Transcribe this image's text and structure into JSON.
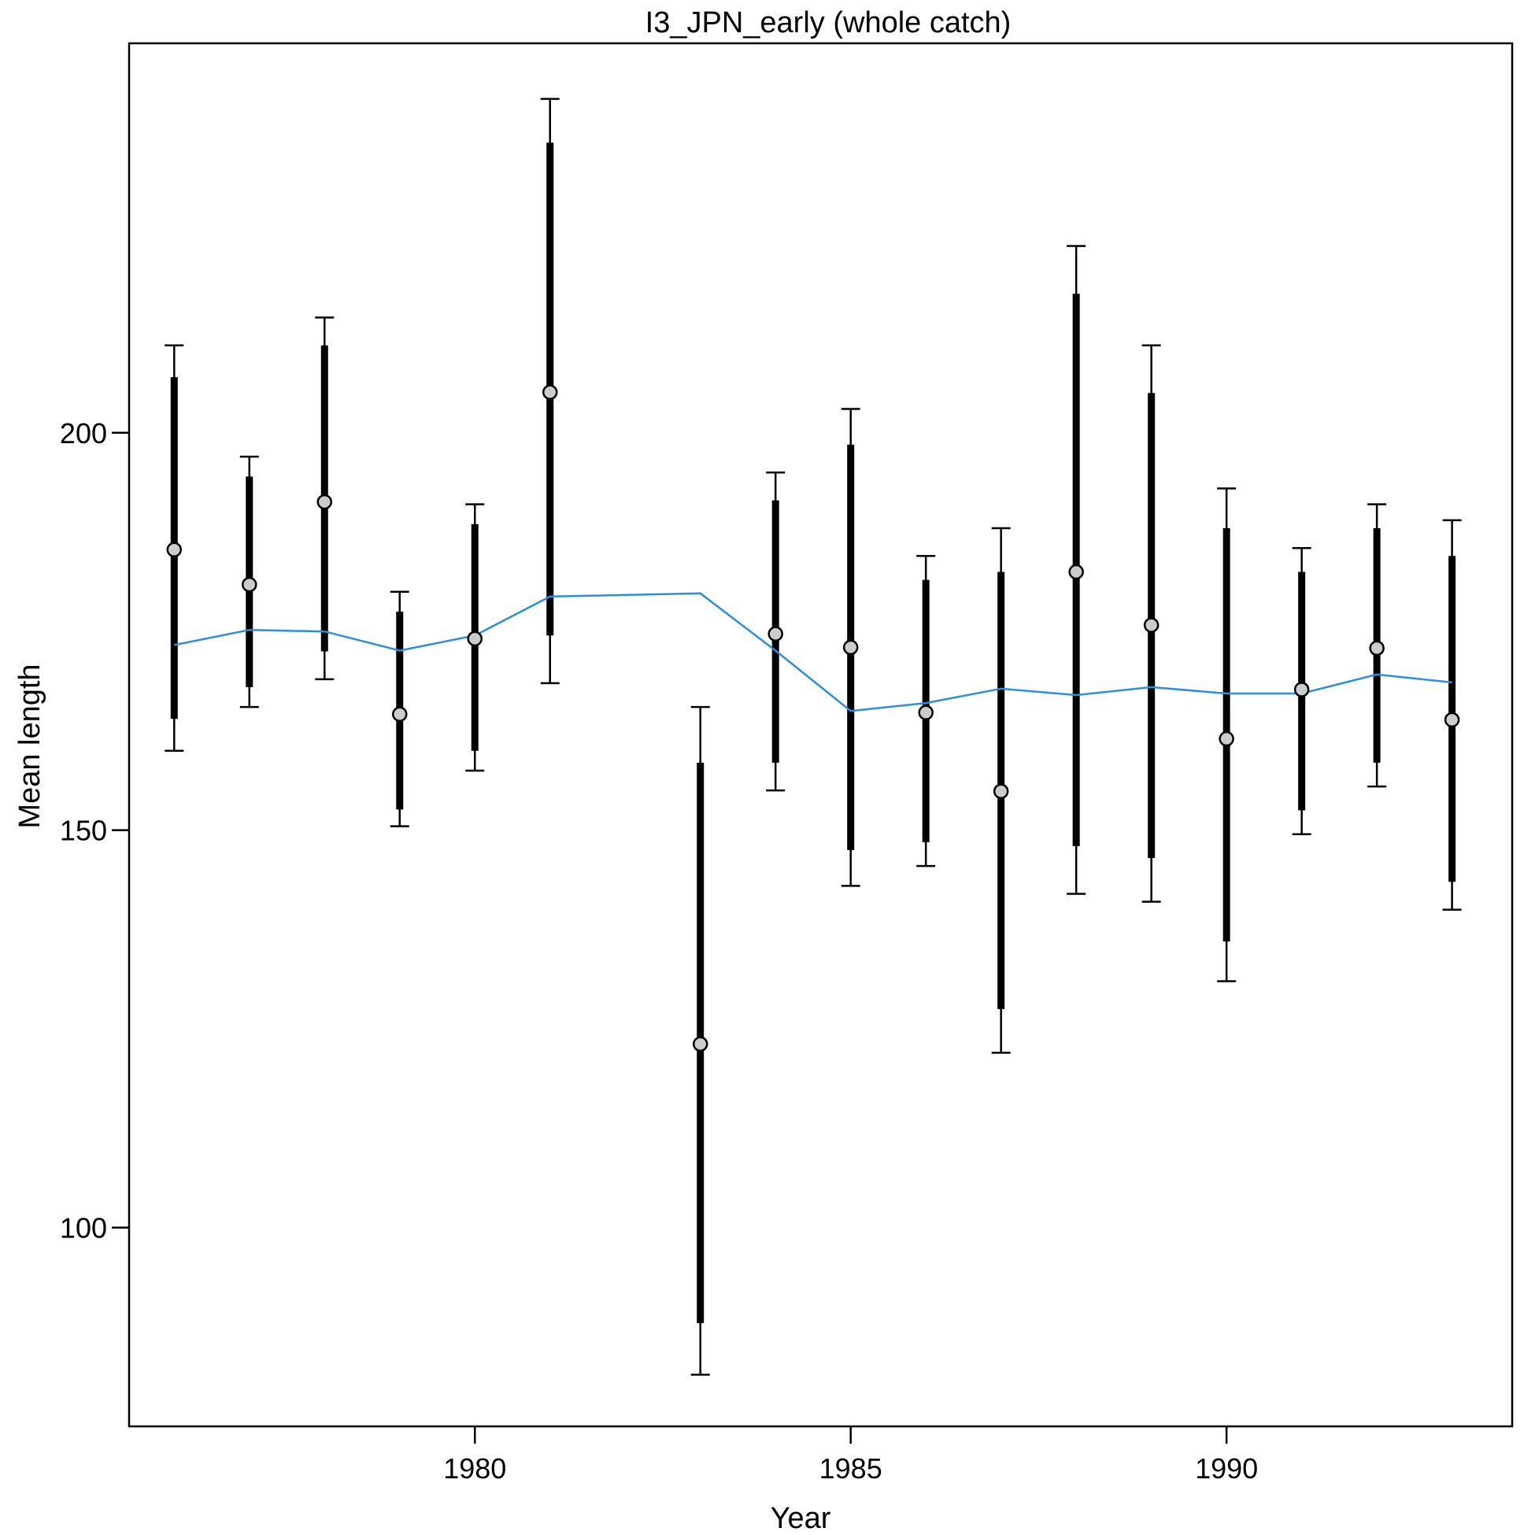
{
  "chart_data": {
    "type": "scatter",
    "title": "I3_JPN_early (whole catch)",
    "xlabel": "Year",
    "ylabel": "Mean length",
    "xlim": [
      1975.4,
      1993.8
    ],
    "ylim": [
      75,
      249
    ],
    "x_ticks": [
      1980,
      1985,
      1990
    ],
    "y_ticks": [
      100,
      150,
      200
    ],
    "grid": false,
    "legend": "none",
    "colors": {
      "observed_fill": "#cccccc",
      "observed_stroke": "#000000",
      "error_bar": "#000000",
      "expected_line": "#2b8ee0"
    },
    "series": [
      {
        "type": "points_with_error_bars",
        "x": [
          1976,
          1977,
          1978,
          1979,
          1980,
          1981,
          1983,
          1984,
          1985,
          1986,
          1987,
          1988,
          1989,
          1990,
          1991,
          1992,
          1993
        ],
        "y": [
          185.3,
          180.9,
          191.3,
          164.6,
          174.1,
          205.1,
          123.1,
          174.7,
          173.0,
          164.8,
          154.9,
          182.5,
          175.8,
          161.5,
          167.7,
          172.9,
          163.9
        ],
        "inner_low": [
          164.0,
          168.0,
          172.5,
          152.6,
          160.0,
          174.5,
          88.0,
          158.5,
          147.5,
          148.5,
          127.5,
          148.0,
          146.5,
          136.0,
          152.5,
          158.5,
          143.5
        ],
        "inner_high": [
          207.0,
          194.5,
          211.0,
          177.5,
          188.5,
          236.5,
          158.5,
          191.5,
          198.5,
          181.5,
          182.5,
          217.5,
          205.0,
          188.0,
          182.5,
          188.0,
          184.5
        ],
        "outer_low": [
          160.0,
          165.5,
          169.0,
          150.5,
          157.5,
          168.5,
          81.5,
          155.0,
          143.0,
          145.5,
          122.0,
          142.0,
          141.0,
          131.0,
          149.5,
          155.5,
          140.0
        ],
        "outer_high": [
          211.0,
          197.0,
          214.5,
          180.0,
          191.0,
          242.0,
          165.5,
          195.0,
          203.0,
          184.5,
          188.0,
          223.5,
          211.0,
          193.0,
          185.5,
          191.0,
          189.0
        ]
      },
      {
        "type": "line",
        "x": [
          1976,
          1977,
          1978,
          1979,
          1980,
          1981,
          1983,
          1984,
          1985,
          1986,
          1987,
          1988,
          1989,
          1990,
          1991,
          1992,
          1993
        ],
        "y": [
          173.3,
          175.2,
          175.0,
          172.6,
          174.5,
          179.4,
          179.8,
          172.6,
          165.0,
          166.0,
          167.8,
          167.0,
          168.0,
          167.2,
          167.2,
          169.6,
          168.6
        ]
      }
    ]
  }
}
